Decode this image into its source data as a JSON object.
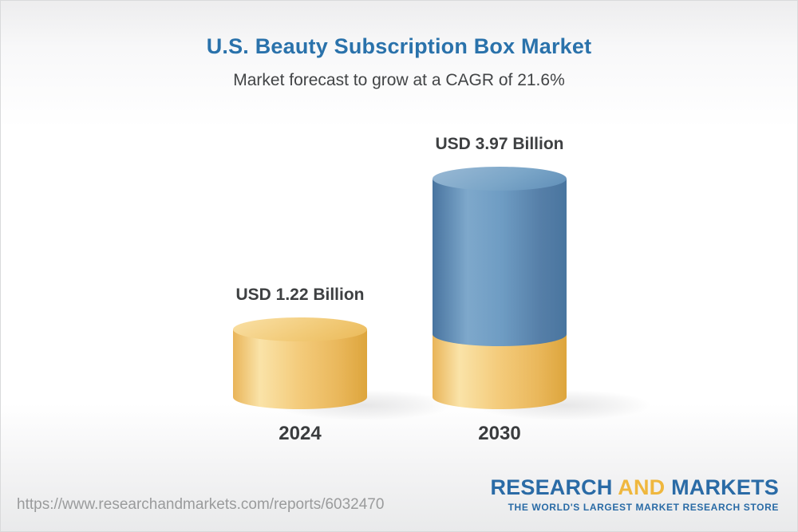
{
  "header": {
    "title": "U.S. Beauty Subscription Box Market",
    "subtitle": "Market forecast to grow at a CAGR of 21.6%"
  },
  "chart_data": {
    "type": "bar",
    "subtype": "3d-cylinder",
    "title": "U.S. Beauty Subscription Box Market",
    "subtitle": "Market forecast to grow at a CAGR of 21.6%",
    "cagr_percent": 21.6,
    "unit": "USD Billion",
    "categories": [
      "2024",
      "2030"
    ],
    "values": [
      1.22,
      3.97
    ],
    "bars": [
      {
        "category": "2024",
        "value": 1.22,
        "label": "USD 1.22 Billion",
        "color": "#f0c36b"
      },
      {
        "category": "2030",
        "value": 3.97,
        "label": "USD 3.97 Billion",
        "color": "#5f8cb5",
        "base_segment": {
          "value": 1.22,
          "color": "#f0c36b"
        }
      }
    ],
    "xlabel": "",
    "ylabel": "",
    "legend": false,
    "grid": false,
    "colors": {
      "yellow_bar": "#f0c36b",
      "blue_bar": "#5f8cb5",
      "title_blue": "#2a72ab",
      "label_gray": "#3e4042"
    }
  },
  "footer": {
    "url": "https://www.researchandmarkets.com/reports/6032470",
    "logo": {
      "word1": "RESEARCH",
      "word2": "AND",
      "word3": "MARKETS",
      "tagline": "THE WORLD'S LARGEST MARKET RESEARCH STORE",
      "blue": "#2a6ba6",
      "gold": "#efb73e"
    }
  }
}
